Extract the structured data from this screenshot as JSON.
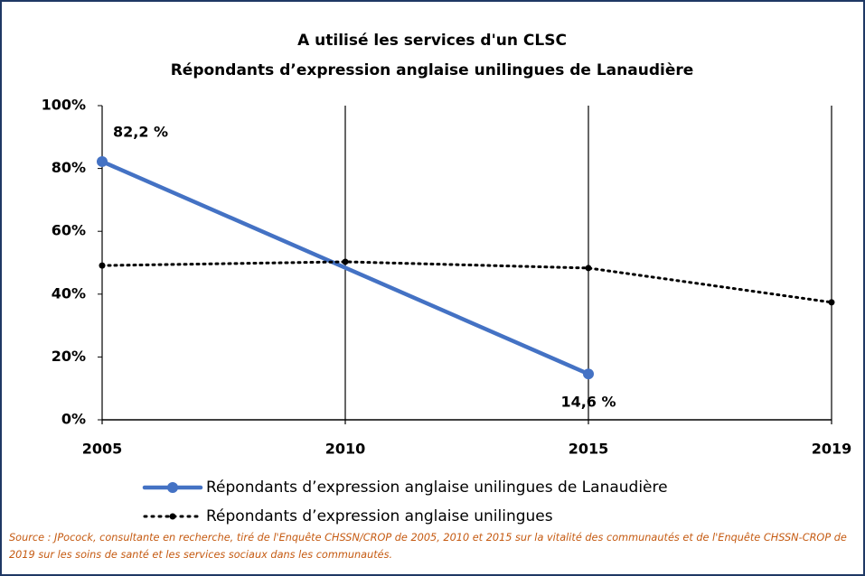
{
  "chart_data": {
    "type": "line",
    "title": "A utilisé les services d'un CLSC",
    "subtitle": "Répondants d’expression anglaise unilingues de Lanaudière",
    "categories": [
      "2005",
      "2010",
      "2015",
      "2019"
    ],
    "series": [
      {
        "name": "Répondants d’expression anglaise unilingues de Lanaudière",
        "color": "#4472c4",
        "style": "solid",
        "values": [
          82.2,
          48.4,
          14.6,
          null
        ],
        "value_labels": [
          "82,2 %",
          null,
          "14,6 %",
          null
        ]
      },
      {
        "name": "Répondants d’expression anglaise unilingues",
        "color": "#000000",
        "style": "dotted",
        "values": [
          49.1,
          50.3,
          48.3,
          37.4
        ]
      }
    ],
    "ylim": [
      0,
      100
    ],
    "yticks": [
      {
        "value": 0,
        "label": "0%"
      },
      {
        "value": 20,
        "label": "20%"
      },
      {
        "value": 40,
        "label": "40%"
      },
      {
        "value": 60,
        "label": "60%"
      },
      {
        "value": 80,
        "label": "80%"
      },
      {
        "value": 100,
        "label": "100%"
      }
    ],
    "grid": true,
    "legend": "bottom",
    "source": "Source : JPocock, consultante en recherche, tiré de l'Enquête CHSSN/CROP de 2005, 2010 et 2015 sur la vitalité des communautés et de l'Enquête CHSSN-CROP de 2019 sur les soins de santé et les services sociaux dans les communautés."
  }
}
